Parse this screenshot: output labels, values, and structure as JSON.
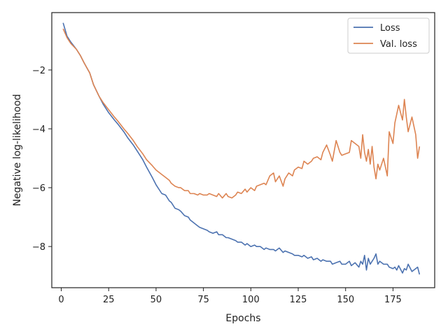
{
  "chart_data": {
    "type": "line",
    "xlabel": "Epochs",
    "ylabel": "Negative log-likelihood",
    "xlim": [
      -5,
      197
    ],
    "ylim": [
      -9.4,
      -0.05
    ],
    "xticks": [
      0,
      25,
      50,
      75,
      100,
      125,
      150,
      175
    ],
    "yticks": [
      -8,
      -6,
      -4,
      -2
    ],
    "ytick_labels": [
      "−8",
      "−6",
      "−4",
      "−2"
    ],
    "grid": false,
    "legend_position": "top-right",
    "series": [
      {
        "name": "Loss",
        "color": "#4c72b0",
        "x": [
          1,
          3,
          5,
          8,
          10,
          12,
          15,
          17,
          20,
          22,
          25,
          28,
          30,
          33,
          35,
          38,
          40,
          43,
          45,
          48,
          50,
          53,
          55,
          57,
          58,
          60,
          62,
          63,
          65,
          67,
          68,
          70,
          72,
          73,
          75,
          77,
          78,
          80,
          82,
          83,
          85,
          87,
          88,
          90,
          92,
          93,
          95,
          97,
          98,
          100,
          102,
          103,
          105,
          107,
          108,
          110,
          112,
          113,
          115,
          117,
          118,
          120,
          122,
          123,
          125,
          127,
          128,
          130,
          132,
          133,
          135,
          137,
          138,
          140,
          142,
          143,
          145,
          147,
          148,
          150,
          152,
          153,
          155,
          157,
          158,
          159,
          160,
          161,
          162,
          163,
          164,
          165,
          166,
          167,
          168,
          170,
          172,
          173,
          175,
          176,
          177,
          178,
          180,
          181,
          182,
          183,
          185,
          187,
          188,
          189
        ],
        "y": [
          -0.4,
          -0.85,
          -1.05,
          -1.3,
          -1.5,
          -1.75,
          -2.1,
          -2.5,
          -2.9,
          -3.15,
          -3.45,
          -3.7,
          -3.85,
          -4.1,
          -4.3,
          -4.55,
          -4.75,
          -5.05,
          -5.3,
          -5.65,
          -5.9,
          -6.2,
          -6.25,
          -6.45,
          -6.5,
          -6.7,
          -6.75,
          -6.8,
          -6.95,
          -7.0,
          -7.1,
          -7.2,
          -7.3,
          -7.35,
          -7.4,
          -7.45,
          -7.5,
          -7.55,
          -7.5,
          -7.6,
          -7.6,
          -7.7,
          -7.7,
          -7.75,
          -7.8,
          -7.85,
          -7.85,
          -7.95,
          -7.9,
          -8.0,
          -7.95,
          -8.0,
          -8.0,
          -8.1,
          -8.05,
          -8.1,
          -8.1,
          -8.15,
          -8.05,
          -8.2,
          -8.15,
          -8.2,
          -8.25,
          -8.3,
          -8.3,
          -8.35,
          -8.3,
          -8.4,
          -8.35,
          -8.45,
          -8.4,
          -8.5,
          -8.45,
          -8.5,
          -8.5,
          -8.6,
          -8.55,
          -8.5,
          -8.6,
          -8.6,
          -8.5,
          -8.65,
          -8.55,
          -8.7,
          -8.5,
          -8.6,
          -8.3,
          -8.8,
          -8.4,
          -8.6,
          -8.5,
          -8.4,
          -8.25,
          -8.6,
          -8.5,
          -8.6,
          -8.6,
          -8.7,
          -8.75,
          -8.7,
          -8.8,
          -8.65,
          -8.9,
          -8.75,
          -8.8,
          -8.6,
          -8.85,
          -8.75,
          -8.7,
          -8.95
        ]
      },
      {
        "name": "Val. loss",
        "color": "#dd8452",
        "x": [
          1,
          3,
          5,
          8,
          10,
          12,
          15,
          17,
          20,
          22,
          25,
          28,
          30,
          33,
          35,
          38,
          40,
          43,
          45,
          48,
          50,
          53,
          55,
          57,
          58,
          60,
          62,
          63,
          65,
          67,
          68,
          70,
          72,
          73,
          75,
          77,
          78,
          80,
          82,
          83,
          85,
          87,
          88,
          90,
          92,
          93,
          95,
          97,
          98,
          100,
          102,
          103,
          105,
          107,
          108,
          110,
          112,
          113,
          115,
          117,
          118,
          120,
          122,
          123,
          125,
          127,
          128,
          130,
          132,
          133,
          135,
          137,
          138,
          140,
          142,
          143,
          145,
          147,
          148,
          150,
          152,
          153,
          155,
          157,
          158,
          159,
          160,
          161,
          162,
          163,
          164,
          165,
          166,
          167,
          168,
          170,
          172,
          173,
          175,
          176,
          177,
          178,
          180,
          181,
          182,
          183,
          185,
          187,
          188,
          189
        ],
        "y": [
          -0.6,
          -0.9,
          -1.1,
          -1.3,
          -1.5,
          -1.75,
          -2.1,
          -2.5,
          -2.9,
          -3.1,
          -3.35,
          -3.6,
          -3.75,
          -4.0,
          -4.15,
          -4.4,
          -4.6,
          -4.85,
          -5.05,
          -5.25,
          -5.4,
          -5.55,
          -5.65,
          -5.75,
          -5.85,
          -5.95,
          -6.0,
          -6.0,
          -6.1,
          -6.1,
          -6.2,
          -6.2,
          -6.25,
          -6.2,
          -6.25,
          -6.25,
          -6.2,
          -6.25,
          -6.3,
          -6.2,
          -6.35,
          -6.2,
          -6.3,
          -6.35,
          -6.25,
          -6.15,
          -6.2,
          -6.05,
          -6.15,
          -6.0,
          -6.1,
          -5.95,
          -5.9,
          -5.85,
          -5.9,
          -5.6,
          -5.5,
          -5.8,
          -5.6,
          -5.95,
          -5.7,
          -5.5,
          -5.6,
          -5.4,
          -5.3,
          -5.35,
          -5.1,
          -5.2,
          -5.1,
          -5.0,
          -4.95,
          -5.05,
          -4.8,
          -4.55,
          -4.9,
          -5.1,
          -4.4,
          -4.8,
          -4.9,
          -4.85,
          -4.8,
          -4.4,
          -4.5,
          -4.6,
          -5.0,
          -4.2,
          -4.8,
          -5.1,
          -4.7,
          -5.2,
          -4.6,
          -5.3,
          -5.7,
          -5.2,
          -5.4,
          -5.0,
          -5.6,
          -4.1,
          -4.5,
          -3.8,
          -3.5,
          -3.2,
          -3.7,
          -3.0,
          -3.6,
          -4.1,
          -3.6,
          -4.2,
          -5.0,
          -4.6
        ]
      }
    ]
  }
}
